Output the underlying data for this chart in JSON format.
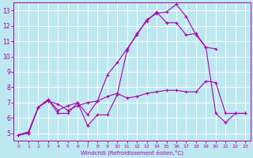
{
  "xlabel": "Windchill (Refroidissement éolien,°C)",
  "xlim": [
    -0.5,
    23.5
  ],
  "ylim": [
    4.5,
    13.5
  ],
  "xticks": [
    0,
    1,
    2,
    3,
    4,
    5,
    6,
    7,
    8,
    9,
    10,
    11,
    12,
    13,
    14,
    15,
    16,
    17,
    18,
    19,
    20,
    21,
    22,
    23
  ],
  "yticks": [
    5,
    6,
    7,
    8,
    9,
    10,
    11,
    12,
    13
  ],
  "bg_color": "#bde8f0",
  "line_color": "#aa00aa",
  "grid_color": "#ffffff",
  "series1_x": [
    0,
    1,
    2,
    3,
    4,
    5,
    6,
    7,
    8,
    9,
    10,
    11,
    12,
    13,
    14,
    15,
    16,
    17,
    18,
    19,
    20,
    21,
    22,
    23
  ],
  "series1_y": [
    4.9,
    5.0,
    6.7,
    7.2,
    6.3,
    6.3,
    7.0,
    5.5,
    6.2,
    6.2,
    7.5,
    10.4,
    11.5,
    12.3,
    12.9,
    12.2,
    12.2,
    11.4,
    11.5,
    10.6,
    6.3,
    5.7,
    6.3,
    6.3
  ],
  "series2_x": [
    0,
    1,
    2,
    3,
    4,
    5,
    6,
    7,
    8,
    9,
    10,
    11,
    12,
    13,
    14,
    15,
    16,
    17,
    18,
    19,
    20,
    21,
    22,
    23
  ],
  "series2_y": [
    4.9,
    5.0,
    6.7,
    7.1,
    6.9,
    6.5,
    6.8,
    7.0,
    7.1,
    7.4,
    7.6,
    7.3,
    7.4,
    7.6,
    7.7,
    7.8,
    7.8,
    7.7,
    7.7,
    8.4,
    8.3,
    6.3,
    6.3,
    6.3
  ],
  "series3_x": [
    0,
    1,
    2,
    3,
    4,
    5,
    6,
    7,
    8,
    9,
    10,
    11,
    12,
    13,
    14,
    15,
    16,
    17,
    18,
    19,
    20
  ],
  "series3_y": [
    4.9,
    5.1,
    6.7,
    7.2,
    6.5,
    6.8,
    7.0,
    6.2,
    7.1,
    8.8,
    9.6,
    10.5,
    11.4,
    12.4,
    12.8,
    12.9,
    13.4,
    12.6,
    11.4,
    10.6,
    10.5
  ]
}
